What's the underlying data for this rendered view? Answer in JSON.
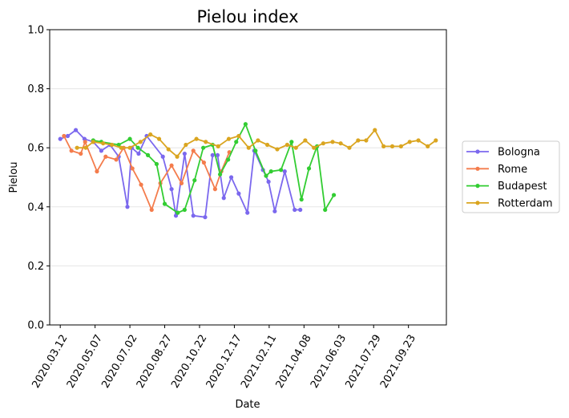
{
  "chart_data": {
    "type": "line",
    "title": "Pielou index",
    "xlabel": "Date",
    "ylabel": "Pielou",
    "ylim": [
      0.0,
      1.0
    ],
    "xlim": [
      "2020-02-24",
      "2021-11-23"
    ],
    "y_ticks": [
      "0.0",
      "0.2",
      "0.4",
      "0.6",
      "0.8",
      "1.0"
    ],
    "x_ticks": [
      "2020.03.12",
      "2020.05.07",
      "2020.07.02",
      "2020.08.27",
      "2020.10.22",
      "2020.12.17",
      "2021.02.11",
      "2021.04.08",
      "2021.06.03",
      "2021.07.29",
      "2021.09.23"
    ],
    "x_tick_dates": [
      "2020-03-12",
      "2020-05-07",
      "2020-07-02",
      "2020-08-27",
      "2020-10-22",
      "2020-12-17",
      "2021-02-11",
      "2021-04-08",
      "2021-06-03",
      "2021-07-29",
      "2021-09-23"
    ],
    "grid": "horizontal",
    "legend_position": "outside-right",
    "series": [
      {
        "name": "Bologna",
        "color": "#7b68ee",
        "x": [
          "2020-03-12",
          "2020-03-24",
          "2020-04-06",
          "2020-04-20",
          "2020-05-04",
          "2020-05-17",
          "2020-05-31",
          "2020-06-14",
          "2020-06-28",
          "2020-07-05",
          "2020-07-16",
          "2020-07-29",
          "2020-08-24",
          "2020-09-07",
          "2020-09-14",
          "2020-09-28",
          "2020-10-12",
          "2020-10-31",
          "2020-11-12",
          "2020-11-20",
          "2020-11-30",
          "2020-12-12",
          "2020-12-24",
          "2021-01-07",
          "2021-01-18",
          "2021-02-01",
          "2021-02-10",
          "2021-02-20",
          "2021-03-08",
          "2021-03-24",
          "2021-04-02"
        ],
        "y": [
          0.63,
          0.64,
          0.66,
          0.63,
          0.62,
          0.59,
          0.61,
          0.57,
          0.4,
          0.6,
          0.58,
          0.64,
          0.57,
          0.46,
          0.37,
          0.58,
          0.37,
          0.365,
          0.575,
          0.575,
          0.43,
          0.5,
          0.445,
          0.38,
          0.59,
          0.525,
          0.485,
          0.385,
          0.52,
          0.39,
          0.39
        ]
      },
      {
        "name": "Rome",
        "color": "#f47c4c",
        "x": [
          "2020-03-18",
          "2020-03-30",
          "2020-04-14",
          "2020-04-21",
          "2020-05-10",
          "2020-05-24",
          "2020-06-10",
          "2020-06-22",
          "2020-07-06",
          "2020-07-20",
          "2020-08-06",
          "2020-08-20",
          "2020-09-07",
          "2020-09-23",
          "2020-10-12",
          "2020-10-29",
          "2020-11-16",
          "2020-11-26",
          "2020-12-09"
        ],
        "y": [
          0.64,
          0.59,
          0.58,
          0.62,
          0.52,
          0.57,
          0.56,
          0.6,
          0.53,
          0.475,
          0.39,
          0.48,
          0.54,
          0.48,
          0.59,
          0.55,
          0.46,
          0.52,
          0.585
        ]
      },
      {
        "name": "Budapest",
        "color": "#32cd32",
        "x": [
          "2020-05-04",
          "2020-05-17",
          "2020-06-14",
          "2020-07-02",
          "2020-07-15",
          "2020-07-31",
          "2020-08-14",
          "2020-08-27",
          "2020-09-17",
          "2020-09-28",
          "2020-10-14",
          "2020-10-28",
          "2020-11-12",
          "2020-11-24",
          "2020-12-07",
          "2020-12-20",
          "2021-01-04",
          "2021-01-20",
          "2021-02-06",
          "2021-02-14",
          "2021-03-02",
          "2021-03-19",
          "2021-04-04",
          "2021-04-16",
          "2021-04-29",
          "2021-05-12",
          "2021-05-26"
        ],
        "y": [
          0.625,
          0.62,
          0.61,
          0.63,
          0.6,
          0.575,
          0.545,
          0.41,
          0.38,
          0.39,
          0.49,
          0.6,
          0.61,
          0.51,
          0.56,
          0.62,
          0.68,
          0.59,
          0.505,
          0.52,
          0.525,
          0.62,
          0.425,
          0.53,
          0.605,
          0.39,
          0.44
        ]
      },
      {
        "name": "Rotterdam",
        "color": "#daa520",
        "x": [
          "2020-04-08",
          "2020-04-22",
          "2020-05-04",
          "2020-05-20",
          "2020-06-03",
          "2020-06-18",
          "2020-07-02",
          "2020-07-19",
          "2020-08-04",
          "2020-08-18",
          "2020-09-02",
          "2020-09-16",
          "2020-09-30",
          "2020-10-17",
          "2020-11-01",
          "2020-11-21",
          "2020-12-08",
          "2020-12-24",
          "2021-01-09",
          "2021-01-24",
          "2021-02-08",
          "2021-02-24",
          "2021-03-12",
          "2021-03-26",
          "2021-04-10",
          "2021-04-24",
          "2021-05-09",
          "2021-05-24",
          "2021-06-06",
          "2021-06-20",
          "2021-07-04",
          "2021-07-17",
          "2021-07-31",
          "2021-08-14",
          "2021-08-28",
          "2021-09-11",
          "2021-09-25",
          "2021-10-09",
          "2021-10-24",
          "2021-11-06"
        ],
        "y": [
          0.6,
          0.6,
          0.62,
          0.615,
          0.61,
          0.6,
          0.6,
          0.62,
          0.645,
          0.63,
          0.595,
          0.57,
          0.61,
          0.63,
          0.62,
          0.605,
          0.63,
          0.64,
          0.6,
          0.625,
          0.61,
          0.595,
          0.61,
          0.6,
          0.625,
          0.6,
          0.615,
          0.62,
          0.615,
          0.6,
          0.625,
          0.625,
          0.66,
          0.605,
          0.605,
          0.605,
          0.62,
          0.625,
          0.605,
          0.625
        ]
      }
    ]
  }
}
